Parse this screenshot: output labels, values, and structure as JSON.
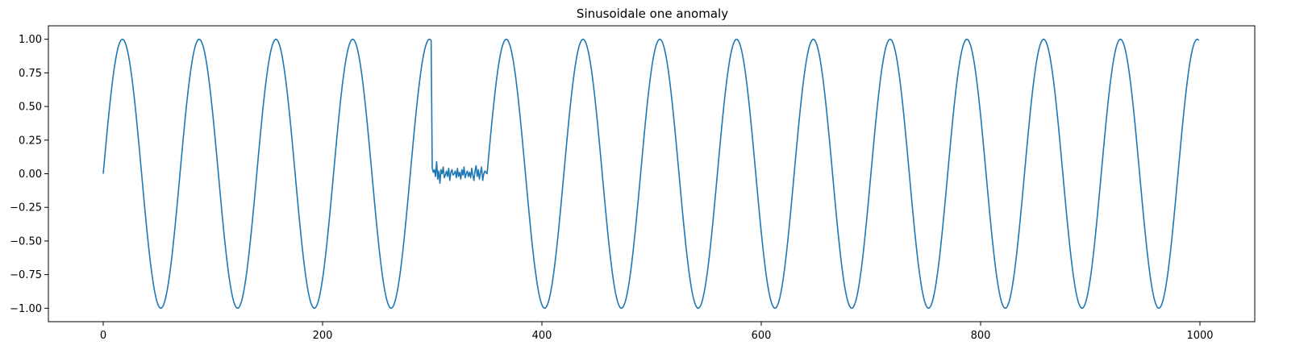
{
  "chart_data": {
    "type": "line",
    "title": "Sinusoidale one anomaly",
    "xlabel": "",
    "ylabel": "",
    "xlim": [
      -50,
      1050
    ],
    "ylim": [
      -1.1,
      1.1
    ],
    "grid": false,
    "legend": "none",
    "x_ticks": [
      0,
      200,
      400,
      600,
      800,
      1000
    ],
    "x_tick_labels": [
      "0",
      "200",
      "400",
      "600",
      "800",
      "1000"
    ],
    "y_ticks": [
      1.0,
      0.75,
      0.5,
      0.25,
      0.0,
      -0.25,
      -0.5,
      -0.75,
      -1.0
    ],
    "y_tick_labels": [
      "1.00",
      "0.75",
      "0.50",
      "0.25",
      "0.00",
      "−0.25",
      "−0.50",
      "−0.75",
      "−1.00"
    ],
    "series": [
      {
        "color": "#1f77b4",
        "period": 70,
        "x_range": [
          0,
          999
        ],
        "anomaly": {
          "x_range": [
            300,
            349
          ],
          "noise_values": [
            0.04,
            0.01,
            0.03,
            -0.02,
            0.09,
            -0.04,
            0.02,
            -0.07,
            0.03,
            0.0,
            0.05,
            -0.03,
            -0.01,
            0.02,
            -0.02,
            0.04,
            -0.05,
            0.01,
            0.03,
            -0.01,
            0.0,
            0.02,
            -0.03,
            0.04,
            -0.02,
            0.01,
            -0.04,
            0.03,
            -0.01,
            0.05,
            -0.03,
            0.0,
            0.02,
            -0.02,
            0.01,
            -0.03,
            0.04,
            -0.01,
            -0.05,
            0.02,
            0.06,
            -0.02,
            0.03,
            -0.04,
            0.01,
            0.05,
            -0.05,
            0.0,
            0.02,
            0.01
          ]
        }
      }
    ]
  }
}
